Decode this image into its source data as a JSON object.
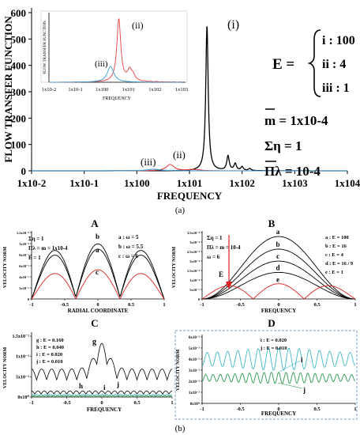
{
  "figure": {
    "label_a": "(a)",
    "label_b": "(b)"
  },
  "chart_data": [
    {
      "id": "main",
      "type": "line",
      "title": "",
      "xlabel": "FREQUENCY",
      "ylabel": "FLOW TRANSFER FUNCTION",
      "xscale": "log",
      "xlim": [
        0.01,
        10000
      ],
      "ylim": [
        0,
        600
      ],
      "xticks": [
        "1x10-2",
        "1x10-1",
        "1x100",
        "1x101",
        "1x102",
        "1x103",
        "1x104"
      ],
      "yticks": [
        "0",
        "100",
        "200",
        "300",
        "400",
        "500",
        "600"
      ],
      "annotations": {
        "E_label": "E =",
        "E_values": [
          "i : 100",
          "ii : 4",
          "iii : 1"
        ],
        "m_label": "m = 1x10-4",
        "eta_label": "Ση = 1",
        "pi_label": "Πλ = 10-4",
        "peak_labels": [
          "(i)",
          "(ii)",
          "(iii)"
        ]
      },
      "series": [
        {
          "name": "(i)",
          "color": "#000000",
          "peaks": [
            [
              21.5,
              548
            ],
            [
              54,
              55
            ],
            [
              74,
              26
            ],
            [
              100,
              14
            ],
            [
              140,
              8
            ]
          ],
          "width": 0.028
        },
        {
          "name": "(ii)",
          "color": "#e84040",
          "peaks": [
            [
              4.3,
              24
            ],
            [
              11,
              4
            ],
            [
              15,
              2
            ]
          ],
          "width": 0.09
        },
        {
          "name": "(iii)",
          "color": "#3aa0d8",
          "peaks": [
            [
              2.1,
              6
            ]
          ],
          "width": 0.15
        }
      ],
      "inset": {
        "xlabel": "FREQUENCY",
        "ylabel": "FLOW TRANSFER FUNCTION",
        "xticks": [
          "1x10-2",
          "1x10-1",
          "1x100",
          "1x101",
          "1x102",
          "1x103"
        ],
        "labels": [
          "(ii)",
          "(iii)"
        ]
      }
    },
    {
      "id": "A",
      "panel_label": "A",
      "type": "line",
      "xlabel": "RADIAL COORDINATE",
      "ylabel": "VELOCITY NORM",
      "xticks": [
        "-1",
        "-0.5",
        "0",
        "0.5",
        "1"
      ],
      "yticks": [
        "0",
        "2x10⁻⁵",
        "4x10⁻⁵",
        "6x10⁻⁵",
        "8x10⁻⁵",
        "1x10⁻⁴",
        "1.2x10⁻⁴"
      ],
      "params": [
        "Ση = 1",
        "Πλ = m = 1x10-4",
        "E = 1"
      ],
      "legend": [
        "a : ω = 5",
        "b : ω = 5.5",
        "c : ω = 6"
      ],
      "curve_labels": [
        "b",
        "a",
        "c"
      ],
      "series": [
        {
          "name": "a",
          "color": "#000000",
          "peak": 0.72
        },
        {
          "name": "b",
          "color": "#000000",
          "peak": 0.8
        },
        {
          "name": "c",
          "color": "#e02020",
          "peak": 0.44
        }
      ]
    },
    {
      "id": "B",
      "panel_label": "B",
      "type": "line",
      "xlabel": "FREQUENCY",
      "ylabel": "VELOCITY NORM",
      "xticks": [
        "-1",
        "-0.5",
        "0",
        "0.5",
        "1"
      ],
      "yticks": [
        "0",
        "5x10⁻⁵",
        "1x10⁻⁴",
        "1.5x10⁻⁴",
        "2x10⁻⁴",
        "2.5x10⁻⁴",
        "3x10⁻⁴",
        "3.5x10⁻⁴"
      ],
      "params": [
        "Ση = 1",
        "Πλ = m = 10-4",
        "ω = 6"
      ],
      "legend": [
        "a : E = 100",
        "b : E = 16",
        "c : E = 4",
        "d : E = 16 / 9",
        "e : E = 1"
      ],
      "arrow_label": "E",
      "series": [
        {
          "name": "a",
          "color": "#000000",
          "peak": 0.94
        },
        {
          "name": "b",
          "color": "#000000",
          "peak": 0.75
        },
        {
          "name": "c",
          "color": "#000000",
          "peak": 0.57
        },
        {
          "name": "d",
          "color": "#000000",
          "peak": 0.4
        },
        {
          "name": "e",
          "color": "#e02020",
          "peak": 0.23
        }
      ]
    },
    {
      "id": "C",
      "panel_label": "C",
      "type": "line",
      "xlabel": "FREQUENCY",
      "ylabel": "VELOCITY NORM",
      "xticks": [
        "-1",
        "-0.5",
        "0",
        "0.5",
        "1"
      ],
      "yticks": [
        "0x10⁰",
        "5x10⁻²",
        "1x10⁻²",
        "1.5x10⁻²"
      ],
      "legend": [
        "g : E = 0.160",
        "h : E = 0.040",
        "i : E = 0.020",
        "j : E = 0.010"
      ],
      "curve_labels": [
        "g",
        "h",
        "i",
        "j"
      ],
      "series": [
        {
          "name": "g",
          "color": "#000000"
        },
        {
          "name": "h",
          "color": "#000000"
        },
        {
          "name": "i",
          "color": "#3fb9c9"
        },
        {
          "name": "j",
          "color": "#2a9a50"
        }
      ]
    },
    {
      "id": "D",
      "panel_label": "D",
      "type": "line",
      "xlabel": "FREQUENCY",
      "ylabel": "VELOCITY NORM",
      "xticks": [
        "-1",
        "-0.5",
        "0",
        "0.5",
        "1"
      ],
      "yticks": [
        "0x10⁰",
        "1x10⁻³",
        "2x10⁻³",
        "3x10⁻³",
        "4x10⁻³",
        "5x10⁻³",
        "6x10⁻³"
      ],
      "legend": [
        "i : E = 0.020",
        "j : E = 0.010"
      ],
      "curve_labels": [
        "i",
        "j"
      ],
      "series": [
        {
          "name": "i",
          "color": "#3fb9c9",
          "level": 4.0,
          "amp": 1.0
        },
        {
          "name": "j",
          "color": "#2a9a50",
          "level": 2.3,
          "amp": 0.5
        }
      ]
    }
  ]
}
